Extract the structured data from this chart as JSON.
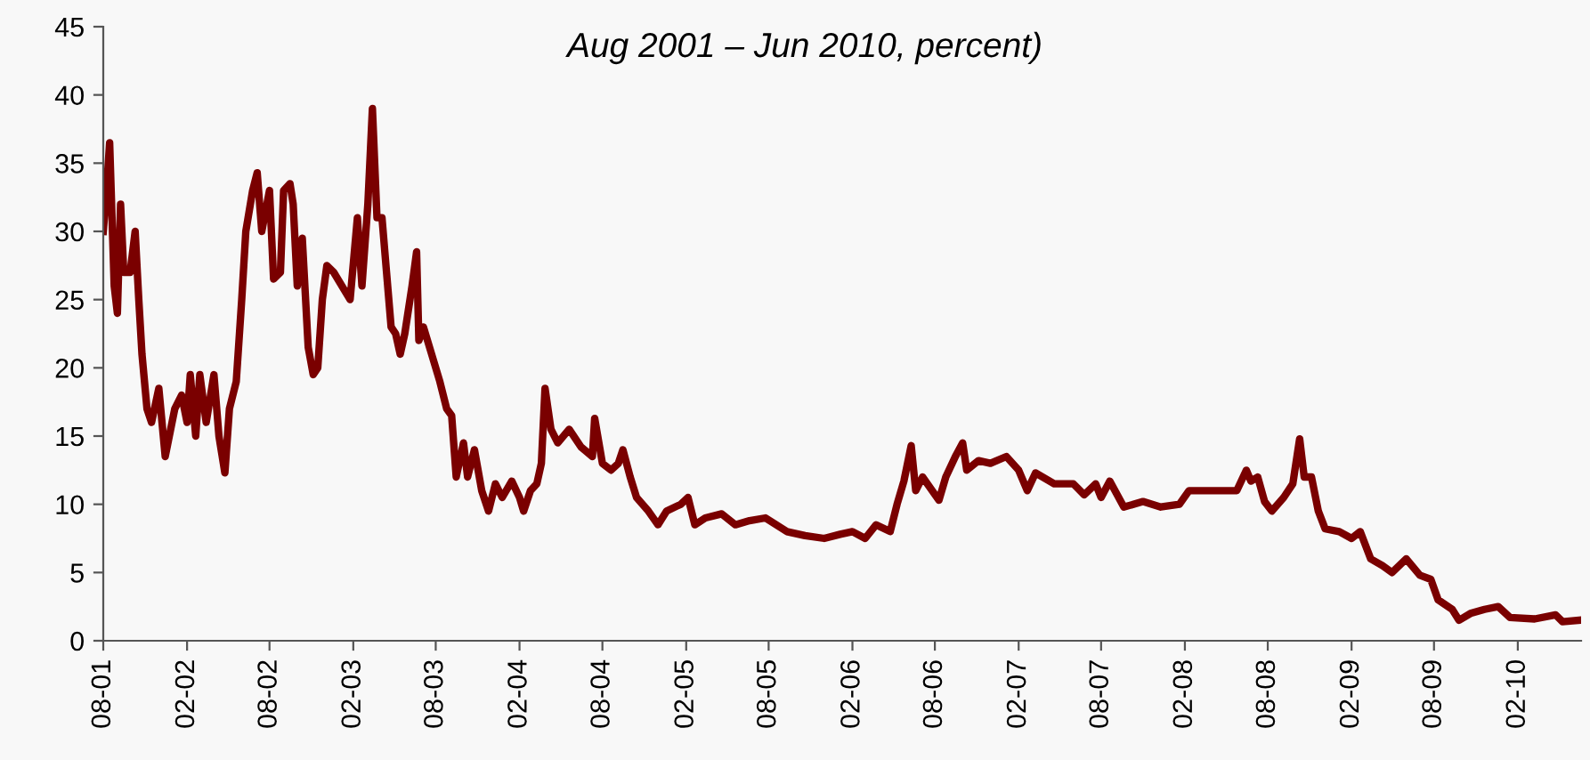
{
  "chart_data": {
    "type": "line",
    "title": "Aug 2001 – Jun 2010, percent)",
    "x": [
      "2001-08-01",
      "2001-08-08",
      "2001-08-15",
      "2001-08-25",
      "2001-09-01",
      "2001-09-08",
      "2001-09-15",
      "2001-09-29",
      "2001-10-10",
      "2001-10-18",
      "2001-10-25",
      "2001-11-05",
      "2001-11-15",
      "2001-12-01",
      "2001-12-15",
      "2002-01-05",
      "2002-01-20",
      "2002-02-01",
      "2002-02-08",
      "2002-02-20",
      "2002-03-01",
      "2002-03-15",
      "2002-04-01",
      "2002-04-12",
      "2002-04-25",
      "2002-05-05",
      "2002-05-20",
      "2002-06-01",
      "2002-06-10",
      "2002-06-25",
      "2002-07-05",
      "2002-07-15",
      "2002-08-01",
      "2002-08-10",
      "2002-08-25",
      "2002-09-01",
      "2002-09-15",
      "2002-09-22",
      "2002-10-01",
      "2002-10-12",
      "2002-10-25",
      "2002-11-05",
      "2002-11-15",
      "2002-11-25",
      "2002-12-05",
      "2002-12-20",
      "2003-01-25",
      "2003-02-10",
      "2003-02-20",
      "2003-03-05",
      "2003-03-15",
      "2003-03-25",
      "2003-04-05",
      "2003-04-15",
      "2003-04-25",
      "2003-05-05",
      "2003-05-15",
      "2003-05-25",
      "2003-06-10",
      "2003-06-20",
      "2003-06-25",
      "2003-07-05",
      "2003-08-10",
      "2003-08-25",
      "2003-09-05",
      "2003-09-15",
      "2003-10-01",
      "2003-10-10",
      "2003-10-25",
      "2003-11-10",
      "2003-11-25",
      "2003-12-10",
      "2003-12-25",
      "2004-01-15",
      "2004-02-01",
      "2004-02-10",
      "2004-02-25",
      "2004-03-10",
      "2004-03-20",
      "2004-03-28",
      "2004-04-10",
      "2004-04-25",
      "2004-05-20",
      "2004-06-15",
      "2004-07-10",
      "2004-07-15",
      "2004-08-01",
      "2004-08-20",
      "2004-09-05",
      "2004-09-15",
      "2004-10-01",
      "2004-10-15",
      "2004-11-10",
      "2004-12-01",
      "2004-12-20",
      "2005-01-20",
      "2005-02-05",
      "2005-02-20",
      "2005-03-15",
      "2005-04-20",
      "2005-05-20",
      "2005-06-20",
      "2005-07-25",
      "2005-09-10",
      "2005-10-20",
      "2005-12-01",
      "2006-01-05",
      "2006-02-01",
      "2006-03-01",
      "2006-03-25",
      "2006-04-25",
      "2006-05-10",
      "2006-05-25",
      "2006-06-10",
      "2006-06-20",
      "2006-07-05",
      "2006-08-10",
      "2006-08-25",
      "2006-09-15",
      "2006-10-01",
      "2006-10-10",
      "2006-11-05",
      "2006-12-01",
      "2007-01-05",
      "2007-02-01",
      "2007-02-20",
      "2007-03-10",
      "2007-04-20",
      "2007-06-01",
      "2007-06-25",
      "2007-07-20",
      "2007-08-01",
      "2007-08-20",
      "2007-09-20",
      "2007-11-01",
      "2007-12-10",
      "2008-01-20",
      "2008-02-10",
      "2008-04-05",
      "2008-05-25",
      "2008-06-15",
      "2008-06-25",
      "2008-07-10",
      "2008-07-25",
      "2008-08-10",
      "2008-09-05",
      "2008-09-25",
      "2008-10-10",
      "2008-10-20",
      "2008-11-05",
      "2008-11-20",
      "2008-12-05",
      "2009-01-05",
      "2009-02-01",
      "2009-02-20",
      "2009-03-15",
      "2009-04-10",
      "2009-05-01",
      "2009-06-01",
      "2009-07-01",
      "2009-07-25",
      "2009-08-10",
      "2009-09-10",
      "2009-09-25",
      "2009-10-20",
      "2009-11-20",
      "2009-12-20",
      "2010-01-15",
      "2010-03-10",
      "2010-04-25",
      "2010-05-10",
      "2010-06-15"
    ],
    "series": [
      {
        "color": "#7a0000",
        "values": [
          30,
          33,
          36.5,
          26,
          24,
          32,
          27,
          27,
          30,
          25,
          21,
          17,
          16,
          18.5,
          13.5,
          17,
          18,
          16,
          19.5,
          15,
          19.5,
          16,
          19.5,
          15,
          12.3,
          17,
          19,
          25,
          30,
          33,
          34.3,
          30,
          33,
          26.5,
          27,
          33,
          33.5,
          32,
          26,
          29.5,
          21.5,
          19.5,
          20,
          25,
          27.5,
          27,
          25,
          31,
          26,
          32,
          39,
          31,
          31,
          27,
          23,
          22.5,
          21,
          22.5,
          26,
          28.5,
          22,
          23,
          19,
          17,
          16.5,
          12,
          14.5,
          12,
          14,
          11,
          9.5,
          11.5,
          10.5,
          11.7,
          10.5,
          9.5,
          11,
          11.5,
          13,
          18.5,
          15.5,
          14.5,
          15.5,
          14.2,
          13.5,
          16.3,
          13,
          12.5,
          13,
          14,
          12,
          10.5,
          9.5,
          8.5,
          9.5,
          10,
          10.5,
          8.5,
          9,
          9.3,
          8.5,
          8.8,
          9,
          8,
          7.7,
          7.5,
          7.8,
          8,
          7.5,
          8.5,
          8,
          10,
          11.7,
          14.3,
          11,
          12,
          10.3,
          12,
          13.5,
          14.5,
          12.5,
          13.2,
          13,
          13.5,
          12.5,
          11,
          12.3,
          11.5,
          11.5,
          10.7,
          11.5,
          10.5,
          11.7,
          9.8,
          10.2,
          9.8,
          10,
          11,
          11,
          11,
          12.5,
          11.7,
          12,
          10.2,
          9.5,
          10.5,
          11.5,
          14.8,
          12,
          12,
          9.5,
          8.2,
          8,
          7.5,
          8,
          6,
          5.5,
          5,
          6,
          4.8,
          4.5,
          3,
          2.3,
          1.5,
          2,
          2.3,
          2.5,
          1.7,
          1.6,
          1.9,
          1.4,
          1.5
        ]
      }
    ],
    "xlim": [
      "2001-08-01",
      "2010-06-20"
    ],
    "xticks": [
      {
        "value": "2001-08-01",
        "label": "08-01"
      },
      {
        "value": "2002-02-01",
        "label": "02-02"
      },
      {
        "value": "2002-08-01",
        "label": "08-02"
      },
      {
        "value": "2003-02-01",
        "label": "02-03"
      },
      {
        "value": "2003-08-01",
        "label": "08-03"
      },
      {
        "value": "2004-02-01",
        "label": "02-04"
      },
      {
        "value": "2004-08-01",
        "label": "08-04"
      },
      {
        "value": "2005-02-01",
        "label": "02-05"
      },
      {
        "value": "2005-08-01",
        "label": "08-05"
      },
      {
        "value": "2006-02-01",
        "label": "02-06"
      },
      {
        "value": "2006-08-01",
        "label": "08-06"
      },
      {
        "value": "2007-02-01",
        "label": "02-07"
      },
      {
        "value": "2007-08-01",
        "label": "08-07"
      },
      {
        "value": "2008-02-01",
        "label": "02-08"
      },
      {
        "value": "2008-08-01",
        "label": "08-08"
      },
      {
        "value": "2009-02-01",
        "label": "02-09"
      },
      {
        "value": "2009-08-01",
        "label": "08-09"
      },
      {
        "value": "2010-02-01",
        "label": "02-10"
      }
    ],
    "ylim": [
      0,
      45
    ],
    "yticks": [
      0,
      5,
      10,
      15,
      20,
      25,
      30,
      35,
      40,
      45
    ],
    "grid": false,
    "marker": "none",
    "line_style": "solid"
  }
}
